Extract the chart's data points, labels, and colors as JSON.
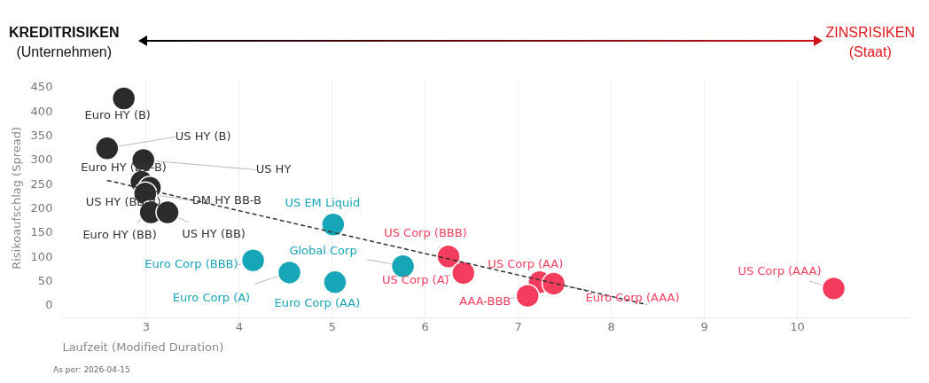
{
  "chart_data": {
    "type": "scatter",
    "xlabel": "Laufzeit (Modified Duration)",
    "ylabel": "Risikoaufschlag (Spread)",
    "xlim": [
      2.1,
      11.2
    ],
    "xticks": [
      3,
      4,
      5,
      6,
      7,
      8,
      9,
      10
    ],
    "ylim": [
      -25,
      470
    ],
    "yticks": [
      0,
      50,
      100,
      150,
      200,
      250,
      300,
      350,
      400,
      450
    ],
    "grid": "x",
    "legend": false,
    "series": [
      {
        "color": "#2b2b2b",
        "x": [
          2.76,
          2.58,
          2.97,
          2.95,
          3.04,
          2.99,
          3.05,
          3.23
        ],
        "values": [
          428,
          325,
          301,
          256,
          244,
          232,
          193,
          193
        ]
      },
      {
        "color": "#17a6b8",
        "x": [
          5.01,
          4.15,
          4.54,
          5.03,
          5.76
        ],
        "values": [
          168,
          94,
          69,
          49,
          82
        ]
      },
      {
        "color": "#f43d5e",
        "x": [
          6.25,
          6.41,
          7.23,
          7.38,
          7.1,
          10.39
        ],
        "values": [
          102,
          68,
          49,
          46,
          21,
          36
        ]
      },
      {
        "type": "line",
        "color": "#333333",
        "line_style": "dashed",
        "x": [
          2.58,
          8.38
        ],
        "values": [
          259,
          3
        ]
      }
    ],
    "annotations": [
      {
        "text": "Euro HY (B)",
        "x": 2.76,
        "y": 428
      },
      {
        "text": "US HY (B)",
        "x": 2.58,
        "y": 325
      },
      {
        "text": "US HY",
        "x": 2.97,
        "y": 301
      },
      {
        "text": "Euro HY (BB-B)",
        "x": 2.95,
        "y": 256
      },
      {
        "text": "US HY (BB-B)",
        "x": 3.04,
        "y": 244
      },
      {
        "text": "DM HY BB-B",
        "x": 2.99,
        "y": 232
      },
      {
        "text": "Euro HY (BB)",
        "x": 3.05,
        "y": 193
      },
      {
        "text": "US HY (BB)",
        "x": 3.23,
        "y": 193
      },
      {
        "text": "US EM Liquid",
        "x": 5.01,
        "y": 168
      },
      {
        "text": "Euro Corp (BBB)",
        "x": 4.15,
        "y": 94
      },
      {
        "text": "Euro Corp (A)",
        "x": 4.54,
        "y": 69
      },
      {
        "text": "Euro Corp (AA)",
        "x": 5.03,
        "y": 49
      },
      {
        "text": "Global Corp",
        "x": 5.76,
        "y": 82
      },
      {
        "text": "US Corp (BBB)",
        "x": 6.25,
        "y": 102
      },
      {
        "text": "US Corp (A)",
        "x": 6.41,
        "y": 68
      },
      {
        "text": "US Corp (AA)",
        "x": 7.23,
        "y": 49
      },
      {
        "text": "Euro Corp (AAA)",
        "x": 7.38,
        "y": 46
      },
      {
        "text": "AAA-BBB",
        "x": 7.1,
        "y": 21
      },
      {
        "text": "US Corp (AAA)",
        "x": 10.39,
        "y": 36
      },
      "KREDITRISIKEN",
      "(Unternehmen)",
      "ZINSRISIKEN",
      "(Staat)",
      "As per: 2026-04-15"
    ]
  }
}
